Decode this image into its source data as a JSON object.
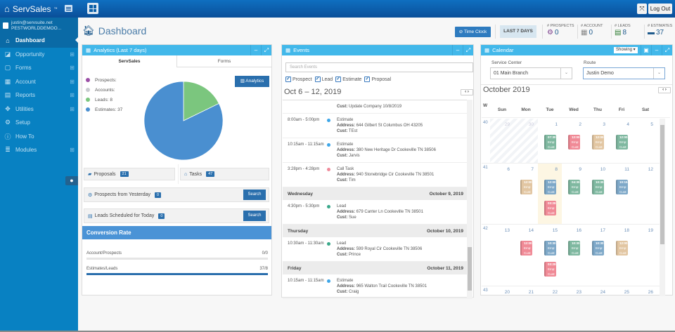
{
  "topbar": {
    "brand": "ServSales",
    "brand_tm": "™",
    "logout_label": "Log Out"
  },
  "sidebar": {
    "user_email": "justin@servsuite.net",
    "user_company": "PESTWORLDDEMOO...",
    "items": [
      {
        "label": "Dashboard",
        "icon": "home-icon",
        "active": true,
        "expandable": false
      },
      {
        "label": "Opportunity",
        "icon": "share-icon",
        "active": false,
        "expandable": true
      },
      {
        "label": "Forms",
        "icon": "pdf-icon",
        "active": false,
        "expandable": true
      },
      {
        "label": "Account",
        "icon": "grid-icon",
        "active": false,
        "expandable": true
      },
      {
        "label": "Reports",
        "icon": "table-icon",
        "active": false,
        "expandable": true
      },
      {
        "label": "Utilities",
        "icon": "dropbox-icon",
        "active": false,
        "expandable": true
      },
      {
        "label": "Setup",
        "icon": "cogs-icon",
        "active": false,
        "expandable": false
      },
      {
        "label": "How To",
        "icon": "info-icon",
        "active": false,
        "expandable": false
      },
      {
        "label": "Modules",
        "icon": "database-icon",
        "active": false,
        "expandable": true
      }
    ]
  },
  "header": {
    "title": "Dashboard",
    "time_clock_label": "Time Clock",
    "range_label": "LAST 7 DAYS",
    "stats": [
      {
        "label": "# PROSPECTS",
        "value": "0",
        "icon": "cogs-icon",
        "color": "#7b3f8c"
      },
      {
        "label": "# ACCOUNT",
        "value": "0",
        "icon": "grid-icon",
        "color": "#888888"
      },
      {
        "label": "# LEADS",
        "value": "8",
        "icon": "id-card-icon",
        "color": "#2e7d32"
      },
      {
        "label": "# ESTIMATES",
        "value": "37",
        "icon": "briefcase-icon",
        "color": "#1e5a8c"
      }
    ]
  },
  "analytics": {
    "title": "Analytics (Last 7 days)",
    "tabs": [
      "ServSales",
      "Forms"
    ],
    "active_tab": 0,
    "analytics_button": "Analytics",
    "legend": [
      {
        "label": "Prospects:",
        "color": "#9b4fa6"
      },
      {
        "label": "Accounts:",
        "color": "#c8cbd0"
      },
      {
        "label": "Leads: 8",
        "color": "#7bc67e"
      },
      {
        "label": "Estimates: 37",
        "color": "#4a8fd0"
      }
    ],
    "proposals_label": "Proposals",
    "proposals_count": "21",
    "tasks_label": "Tasks",
    "tasks_count": "47",
    "prospects_yesterday_label": "Prospects from Yesterday",
    "prospects_yesterday_count": "0",
    "leads_today_label": "Leads Scheduled for Today",
    "leads_today_count": "0",
    "search_label": "Search",
    "conversion_title": "Conversion Rate",
    "conversion": [
      {
        "label": "Account/Prospects",
        "value": "0/0",
        "pct": 0
      },
      {
        "label": "Estimates/Leads",
        "value": "37/8",
        "pct": 100
      }
    ]
  },
  "chart_data": {
    "type": "pie",
    "title": "Analytics (Last 7 days)",
    "categories": [
      "Prospects",
      "Accounts",
      "Leads",
      "Estimates"
    ],
    "values": [
      0,
      0,
      8,
      37
    ],
    "colors": [
      "#9b4fa6",
      "#c8cbd0",
      "#7bc67e",
      "#4a8fd0"
    ],
    "legend_position": "left"
  },
  "events": {
    "title": "Events",
    "search_placeholder": "Search Events",
    "filters": [
      "Prospect",
      "Lead",
      "Estimate",
      "Proposal"
    ],
    "range": "Oct 6 – 12, 2019",
    "prev": "<",
    "next": ">",
    "top_cust_label": "Cust:",
    "top_cust_value": "Update Company 10/8/2019",
    "groups": [
      {
        "day": "",
        "date": "",
        "items": [
          {
            "time": "8:00am - 5:00pm",
            "type": "Estimate",
            "color": "#3ea6e8",
            "address": "644 Gilbert St Columbus OH 43205",
            "cust": "TEst"
          },
          {
            "time": "10:15am - 11:15am",
            "type": "Estimate",
            "color": "#3ea6e8",
            "address": "380 New Heritage Dr Cookeville TN 38506",
            "cust": "Jarvis"
          },
          {
            "time": "3:28pm - 4:28pm",
            "type": "Call Task",
            "color": "#f08a9a",
            "address": "940 Stonebridge Cir Cookeville TN 38501",
            "cust": "Tim"
          }
        ]
      },
      {
        "day": "Wednesday",
        "date": "October 9, 2019",
        "items": [
          {
            "time": "4:30pm - 5:30pm",
            "type": "Lead",
            "color": "#3aa88a",
            "address": "679 Canter Ln Cookeville TN 38501",
            "cust": "Sue"
          }
        ]
      },
      {
        "day": "Thursday",
        "date": "October 10, 2019",
        "items": [
          {
            "time": "10:30am - 11:30am",
            "type": "Lead",
            "color": "#3aa88a",
            "address": "599 Royal Cir Cookeville TN 38506",
            "cust": "Prince"
          }
        ]
      },
      {
        "day": "Friday",
        "date": "October 11, 2019",
        "items": [
          {
            "time": "10:15am - 11:15am",
            "type": "Estimate",
            "color": "#3ea6e8",
            "address": "965 Walton Trail Cookeville TN 38501",
            "cust": "Craig"
          }
        ]
      }
    ],
    "address_label": "Address:",
    "cust_label": "Cust:"
  },
  "calendar": {
    "title": "Calendar",
    "showing_label": "Showing ▾",
    "service_center_label": "Service Center",
    "service_center_value": "01 Main Branch",
    "route_label": "Route",
    "route_value": "Justin Demo",
    "month_title": "October 2019",
    "week_col": "W",
    "days": [
      "Sun",
      "Mon",
      "Tue",
      "Wed",
      "Thu",
      "Fri",
      "Sat"
    ],
    "weeks": [
      {
        "num": "40",
        "dates": [
          "29",
          "30",
          "1",
          "2",
          "3",
          "4",
          "5"
        ],
        "past": [
          0,
          1
        ],
        "today": -1,
        "chips": [
          {
            "col": 2,
            "row": 0,
            "time": "07:30",
            "c": "#7fb8a0"
          },
          {
            "col": 3,
            "row": 0,
            "time": "12:00",
            "c": "#f08a96"
          },
          {
            "col": 4,
            "row": 0,
            "time": "12:00",
            "c": "#e2c6a2"
          },
          {
            "col": 5,
            "row": 0,
            "time": "12:00",
            "c": "#7fb8a0"
          }
        ]
      },
      {
        "num": "41",
        "dates": [
          "6",
          "7",
          "8",
          "9",
          "10",
          "11",
          "12"
        ],
        "past": [],
        "today": 2,
        "chips": [
          {
            "col": 1,
            "row": 0,
            "time": "12:00",
            "c": "#e2c6a2"
          },
          {
            "col": 2,
            "row": 0,
            "time": "12:00",
            "c": "#7ea8c8"
          },
          {
            "col": 3,
            "row": 0,
            "time": "04:30",
            "c": "#7fb8a0"
          },
          {
            "col": 4,
            "row": 0,
            "time": "10:30",
            "c": "#7fb8a0"
          },
          {
            "col": 5,
            "row": 0,
            "time": "10:15",
            "c": "#7ea8c8"
          },
          {
            "col": 2,
            "row": 1,
            "time": "03:28",
            "c": "#f08a96"
          }
        ]
      },
      {
        "num": "42",
        "dates": [
          "13",
          "14",
          "15",
          "16",
          "17",
          "18",
          "19"
        ],
        "past": [],
        "today": -1,
        "chips": [
          {
            "col": 1,
            "row": 0,
            "time": "12:00",
            "c": "#f08a96"
          },
          {
            "col": 2,
            "row": 0,
            "time": "10:30",
            "c": "#7ea8c8"
          },
          {
            "col": 3,
            "row": 0,
            "time": "10:30",
            "c": "#7fb8a0"
          },
          {
            "col": 4,
            "row": 0,
            "time": "10:30",
            "c": "#7ea8c8"
          },
          {
            "col": 5,
            "row": 0,
            "time": "12:00",
            "c": "#e2c6a2"
          },
          {
            "col": 2,
            "row": 1,
            "time": "03:28",
            "c": "#f08a96"
          }
        ]
      },
      {
        "num": "43",
        "dates": [
          "20",
          "21",
          "22",
          "23",
          "24",
          "25",
          "26"
        ],
        "past": [],
        "today": -1,
        "chips": [
          {
            "col": 1,
            "row": 0,
            "time": "12:00",
            "c": "#f08a96"
          },
          {
            "col": 2,
            "row": 0,
            "time": "10:45",
            "c": "#7ea8c8"
          },
          {
            "col": 3,
            "row": 0,
            "time": "10:45",
            "c": "#7fb8a0"
          },
          {
            "col": 4,
            "row": 0,
            "time": "12:00",
            "c": "#e2c6a2"
          },
          {
            "col": 5,
            "row": 0,
            "time": "12:00",
            "c": "#f08a96"
          }
        ]
      }
    ],
    "chip_emp": "Emp:",
    "chip_cust": "Cust:"
  }
}
